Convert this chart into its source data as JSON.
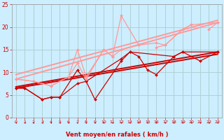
{
  "bg_color": "#cceeff",
  "grid_color": "#aacccc",
  "xlabel": "Vent moyen/en rafales ( km/h )",
  "xlabel_color": "#cc0000",
  "tick_color": "#cc0000",
  "xlim": [
    -0.5,
    23.5
  ],
  "ylim": [
    0,
    25
  ],
  "yticks": [
    0,
    5,
    10,
    15,
    20,
    25
  ],
  "xticks": [
    0,
    1,
    2,
    3,
    4,
    5,
    6,
    7,
    8,
    9,
    10,
    11,
    12,
    13,
    14,
    15,
    16,
    17,
    18,
    19,
    20,
    21,
    22,
    23
  ],
  "lines": [
    {
      "x": [
        0,
        1,
        3,
        4,
        5,
        7,
        8,
        12,
        13,
        14,
        15,
        16,
        18,
        19,
        21,
        23
      ],
      "y": [
        6.5,
        6.5,
        4.0,
        4.5,
        4.5,
        7.5,
        8.0,
        13.0,
        14.5,
        13.5,
        10.5,
        9.5,
        13.5,
        14.5,
        12.5,
        14.5
      ],
      "color": "#cc0000",
      "lw": 0.9,
      "marker": "D",
      "ms": 2.0,
      "linestyle": "-"
    },
    {
      "x": [
        0,
        1,
        3,
        4,
        5,
        7,
        8,
        9,
        12,
        13,
        18,
        19,
        23
      ],
      "y": [
        6.5,
        6.5,
        4.0,
        4.5,
        4.5,
        10.5,
        8.0,
        4.0,
        12.5,
        14.5,
        13.5,
        14.5,
        14.5
      ],
      "color": "#cc0000",
      "lw": 0.9,
      "marker": "D",
      "ms": 2.0,
      "linestyle": "-"
    },
    {
      "x": [
        0,
        23
      ],
      "y": [
        6.5,
        14.0
      ],
      "color": "#cc0000",
      "lw": 1.4,
      "marker": null,
      "ms": 0,
      "linestyle": "-"
    },
    {
      "x": [
        0,
        23
      ],
      "y": [
        6.8,
        14.5
      ],
      "color": "#cc0000",
      "lw": 1.4,
      "marker": null,
      "ms": 0,
      "linestyle": "-"
    },
    {
      "x": [
        0,
        2,
        4,
        6,
        7,
        8,
        10,
        11,
        12,
        14,
        15,
        16,
        17,
        19,
        20,
        23
      ],
      "y": [
        8.5,
        8.0,
        7.0,
        9.0,
        12.0,
        8.5,
        15.0,
        13.5,
        15.0,
        16.0,
        null,
        15.5,
        16.0,
        19.5,
        20.5,
        21.0
      ],
      "color": "#ff9999",
      "lw": 0.9,
      "marker": "D",
      "ms": 2.0,
      "linestyle": "-"
    },
    {
      "x": [
        0,
        2,
        4,
        6,
        7,
        8,
        10,
        11,
        12,
        14,
        16,
        17,
        19,
        20,
        21,
        22,
        23
      ],
      "y": [
        8.5,
        8.0,
        7.0,
        9.0,
        15.0,
        9.0,
        15.0,
        13.5,
        22.5,
        16.0,
        16.5,
        16.0,
        19.5,
        20.5,
        null,
        19.5,
        21.0
      ],
      "color": "#ff9999",
      "lw": 0.9,
      "marker": "D",
      "ms": 2.0,
      "linestyle": "-"
    },
    {
      "x": [
        0,
        23
      ],
      "y": [
        8.5,
        21.0
      ],
      "color": "#ff9999",
      "lw": 1.4,
      "marker": null,
      "ms": 0,
      "linestyle": "-"
    },
    {
      "x": [
        0,
        23
      ],
      "y": [
        9.5,
        21.5
      ],
      "color": "#ff9999",
      "lw": 1.4,
      "marker": null,
      "ms": 0,
      "linestyle": "-"
    }
  ],
  "arrows": [
    0,
    1,
    2,
    3,
    4,
    5,
    6,
    7,
    8,
    9,
    10,
    11,
    12,
    13,
    14,
    15,
    16,
    17,
    18,
    19,
    20,
    21,
    22,
    23
  ]
}
